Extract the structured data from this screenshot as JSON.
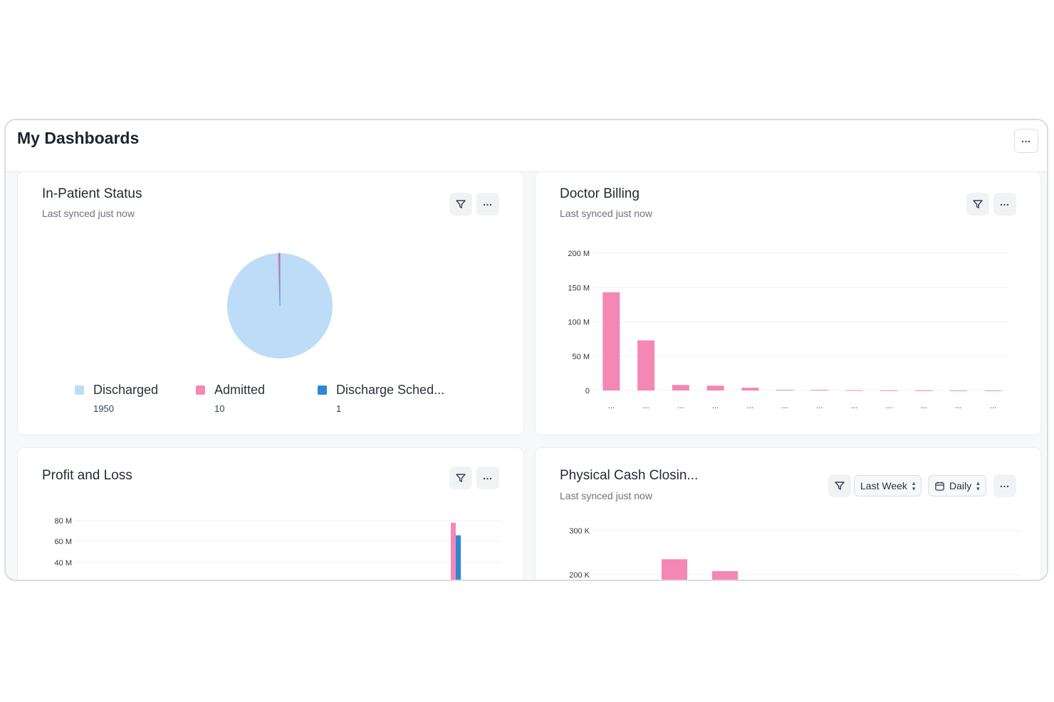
{
  "header": {
    "title": "My Dashboards",
    "menu_icon": "more-horizontal-icon"
  },
  "colors": {
    "pink": "#f487b3",
    "light_blue": "#bddcf7",
    "blue": "#2d87d6"
  },
  "cards": {
    "inpatient": {
      "title": "In-Patient Status",
      "subtitle": "Last synced just now",
      "legend": [
        {
          "label": "Discharged",
          "value": "1950",
          "color": "#bddcf7"
        },
        {
          "label": "Admitted",
          "value": "10",
          "color": "#f487b3"
        },
        {
          "label": "Discharge Sched...",
          "value": "1",
          "color": "#2d87d6"
        }
      ],
      "chart_data": {
        "type": "pie",
        "slices": [
          {
            "label": "Discharged",
            "value": 1950,
            "color": "#bddcf7"
          },
          {
            "label": "Admitted",
            "value": 10,
            "color": "#f487b3"
          },
          {
            "label": "Discharge Sched...",
            "value": 1,
            "color": "#2d87d6"
          }
        ]
      }
    },
    "doctor_billing": {
      "title": "Doctor Billing",
      "subtitle": "Last synced just now",
      "chart_data": {
        "type": "bar",
        "categories": [
          "...",
          "...",
          "...",
          "...",
          "...",
          "...",
          "...",
          "...",
          "...",
          "...",
          "...",
          "..."
        ],
        "values": [
          143,
          73,
          8,
          7,
          4,
          1,
          1,
          0.5,
          0.3,
          0.2,
          0.1,
          0.1
        ],
        "y_ticks": [
          "0",
          "50 M",
          "100 M",
          "150 M",
          "200 M"
        ],
        "ylim": [
          0,
          200
        ],
        "color": "#f487b3",
        "grid": true
      }
    },
    "profit_loss": {
      "title": "Profit and Loss",
      "chart_data": {
        "type": "bar",
        "y_ticks": [
          "40 M",
          "60 M",
          "80 M"
        ],
        "ylim": [
          20,
          80
        ],
        "series": [
          {
            "values": [
              78
            ],
            "color": "#f487b3"
          },
          {
            "values": [
              66
            ],
            "color": "#2d87d6"
          }
        ],
        "grid": true
      }
    },
    "cash_closing": {
      "title": "Physical Cash Closin...",
      "subtitle": "Last synced just now",
      "period_select": "Last Week",
      "interval_select": "Daily",
      "chart_data": {
        "type": "bar",
        "y_ticks": [
          "200 K",
          "300 K"
        ],
        "ylim": [
          200,
          300
        ],
        "values": [
          235,
          208
        ],
        "color": "#f487b3",
        "grid": true
      }
    }
  }
}
